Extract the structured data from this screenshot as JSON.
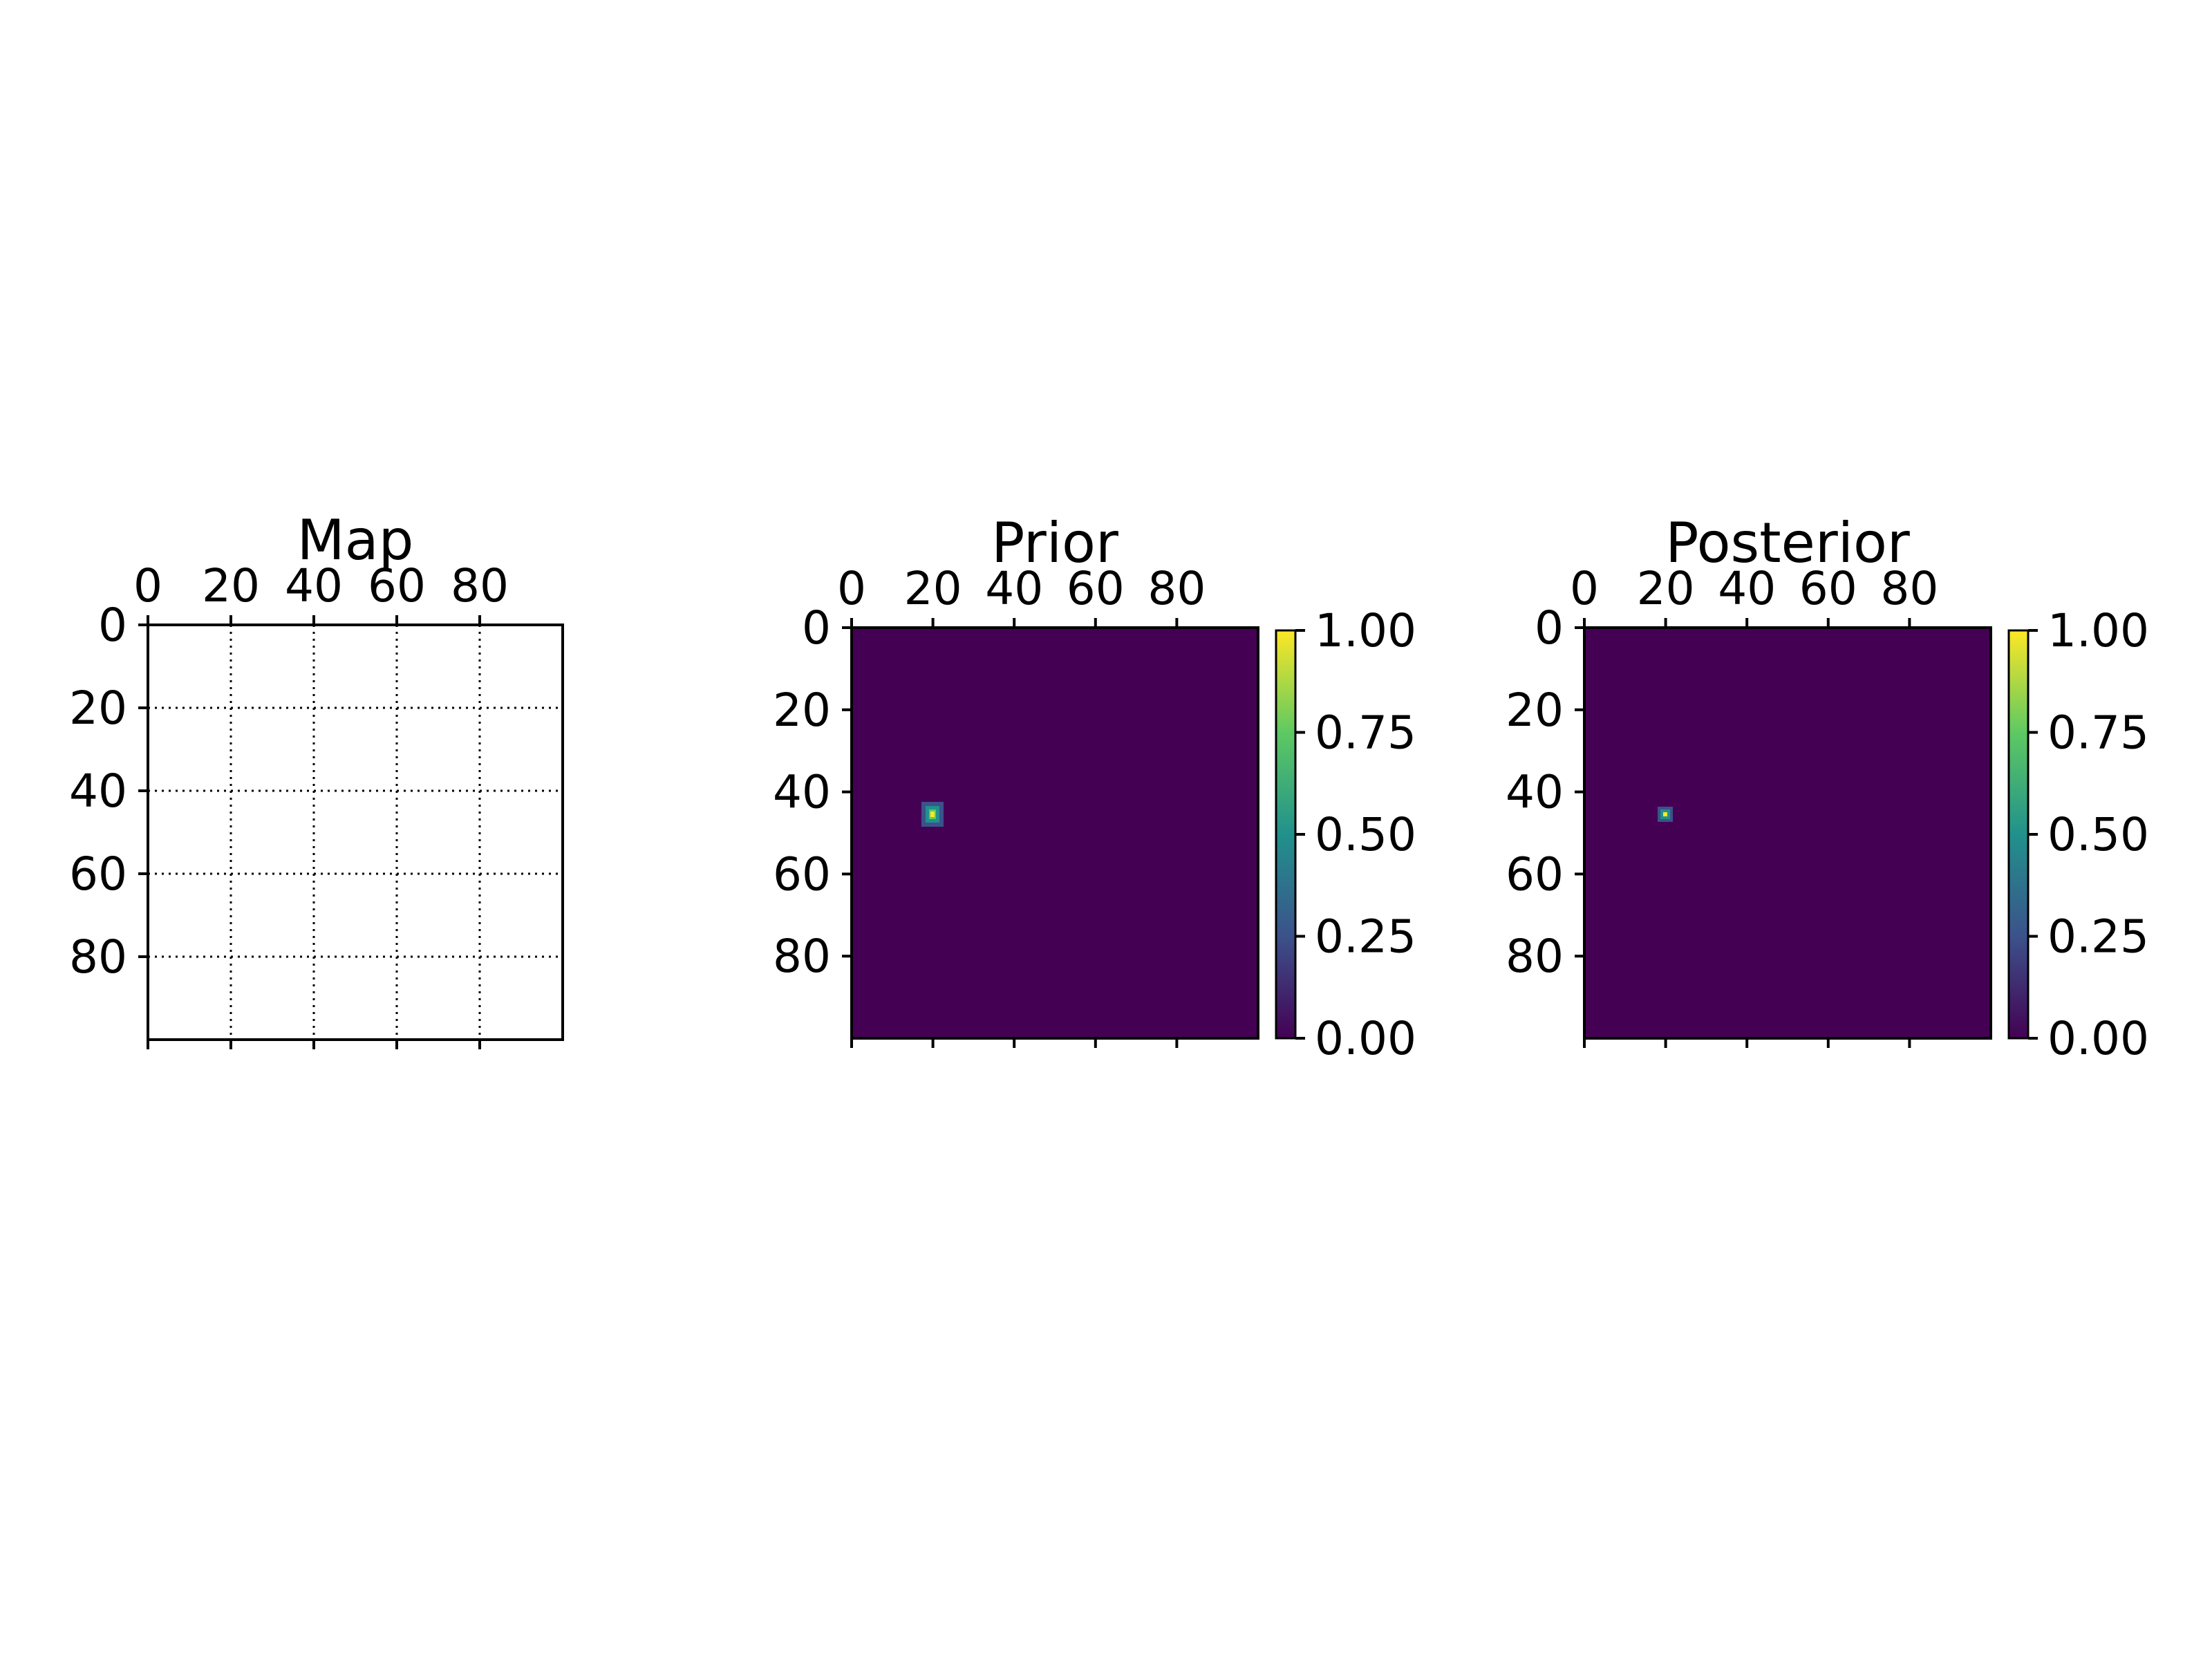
{
  "chart_data": [
    {
      "type": "heatmap",
      "title": "Map",
      "x_ticks": [
        0,
        20,
        40,
        60,
        80
      ],
      "y_ticks": [
        0,
        20,
        40,
        60,
        80
      ],
      "x_range": [
        0,
        100
      ],
      "y_range": [
        0,
        100
      ],
      "x_axis_position": "top",
      "y_inverted": true,
      "grid": true,
      "grid_style": "dotted",
      "colorbar": false,
      "data": "blank map (all cells empty)"
    },
    {
      "type": "heatmap",
      "title": "Prior",
      "x_ticks": [
        0,
        20,
        40,
        60,
        80
      ],
      "y_ticks": [
        0,
        20,
        40,
        60,
        80
      ],
      "x_range": [
        0,
        100
      ],
      "y_range": [
        0,
        100
      ],
      "x_axis_position": "top",
      "y_inverted": true,
      "grid": false,
      "colormap": "viridis",
      "background_value": 0.0,
      "peak": {
        "x": 19,
        "y": 45,
        "value": 1.0,
        "spread": 1.5
      },
      "colorbar": {
        "ticks": [
          "0.00",
          "0.25",
          "0.50",
          "0.75",
          "1.00"
        ],
        "range": [
          0,
          1
        ]
      }
    },
    {
      "type": "heatmap",
      "title": "Posterior",
      "x_ticks": [
        0,
        20,
        40,
        60,
        80
      ],
      "y_ticks": [
        0,
        20,
        40,
        60,
        80
      ],
      "x_range": [
        0,
        100
      ],
      "y_range": [
        0,
        100
      ],
      "x_axis_position": "top",
      "y_inverted": true,
      "grid": false,
      "colormap": "viridis",
      "background_value": 0.0,
      "peak": {
        "x": 19,
        "y": 45,
        "value": 1.0,
        "spread": 0.9
      },
      "colorbar": {
        "ticks": [
          "0.00",
          "0.25",
          "0.50",
          "0.75",
          "1.00"
        ],
        "range": [
          0,
          1
        ]
      }
    }
  ],
  "colors": {
    "viridis_low": "#440154",
    "viridis_25": "#3b528b",
    "viridis_50": "#21918c",
    "viridis_75": "#5ec962",
    "viridis_high": "#fde725",
    "axis": "#000000",
    "background": "#ffffff"
  }
}
